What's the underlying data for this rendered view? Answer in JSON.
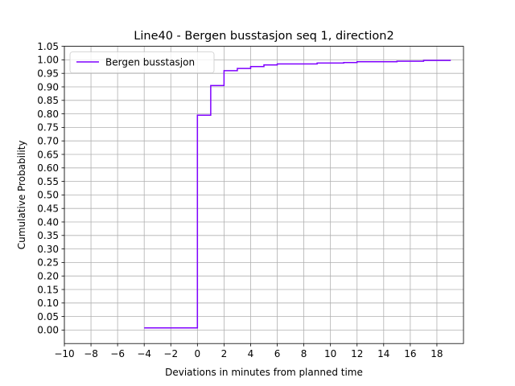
{
  "chart_data": {
    "type": "line",
    "title": "Line40 - Bergen busstasjon seq 1, direction2",
    "xlabel": "Deviations in minutes from planned time",
    "ylabel": "Cumulative Probability",
    "xlim": [
      -10,
      20
    ],
    "ylim": [
      -0.05,
      1.05
    ],
    "xticks": [
      -10,
      -8,
      -6,
      -4,
      -2,
      0,
      2,
      4,
      6,
      8,
      10,
      12,
      14,
      16,
      18
    ],
    "xtick_labels": [
      "−10",
      "−8",
      "−6",
      "−4",
      "−2",
      "0",
      "2",
      "4",
      "6",
      "8",
      "10",
      "12",
      "14",
      "16",
      "18"
    ],
    "yticks": [
      0,
      0.05,
      0.1,
      0.15,
      0.2,
      0.25,
      0.3,
      0.35,
      0.4,
      0.45,
      0.5,
      0.55,
      0.6,
      0.65,
      0.7,
      0.75,
      0.8,
      0.85,
      0.9,
      0.95,
      1.0,
      1.05
    ],
    "ytick_labels": [
      "0.00",
      "0.05",
      "0.10",
      "0.15",
      "0.20",
      "0.25",
      "0.30",
      "0.35",
      "0.40",
      "0.45",
      "0.50",
      "0.55",
      "0.60",
      "0.65",
      "0.70",
      "0.75",
      "0.80",
      "0.85",
      "0.90",
      "0.95",
      "1.00",
      "1.05"
    ],
    "grid": true,
    "legend_position": "top-left",
    "series": [
      {
        "name": "Bergen busstasjon",
        "color": "#7f00ff",
        "drawstyle": "steps-post",
        "x": [
          -4,
          0,
          1,
          2,
          3,
          4,
          5,
          6,
          9,
          11,
          12,
          15,
          17,
          19
        ],
        "y": [
          0.008,
          0.795,
          0.905,
          0.96,
          0.968,
          0.975,
          0.981,
          0.985,
          0.988,
          0.99,
          0.993,
          0.995,
          0.998,
          1.0
        ]
      }
    ]
  }
}
